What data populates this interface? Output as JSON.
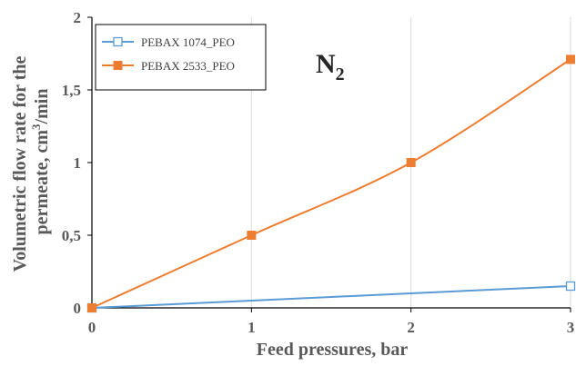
{
  "chart_data": {
    "type": "line",
    "title": "",
    "annotation": {
      "main": "N",
      "sub": "2"
    },
    "xlabel": "Feed pressures,  bar",
    "ylabel": {
      "line1": "Volumetric  flow rate for the",
      "line2_pre": "permeate, cm",
      "line2_sup": "3",
      "line2_post": "/min"
    },
    "x": [
      0,
      1,
      2,
      3
    ],
    "xlim": [
      0,
      3
    ],
    "ylim": [
      0,
      2
    ],
    "x_ticks": [
      "0",
      "1",
      "2",
      "3"
    ],
    "y_ticks": [
      "0",
      "0,5",
      "1",
      "1,5",
      "2"
    ],
    "grid": {
      "x": true,
      "y": false
    },
    "legend_position": "top-left",
    "series": [
      {
        "name": "PEBAX 1074_PEO",
        "values": [
          0,
          0.05,
          0.1,
          0.15
        ],
        "color": "#5B9BD5",
        "marker": "hollow-square",
        "markers_at": [
          0,
          3
        ]
      },
      {
        "name": "PEBAX 2533_PEO",
        "values": [
          0,
          0.5,
          1.0,
          1.71
        ],
        "color": "#ED7D31",
        "marker": "filled-square",
        "markers_at": [
          0,
          1,
          2,
          3
        ]
      }
    ]
  }
}
